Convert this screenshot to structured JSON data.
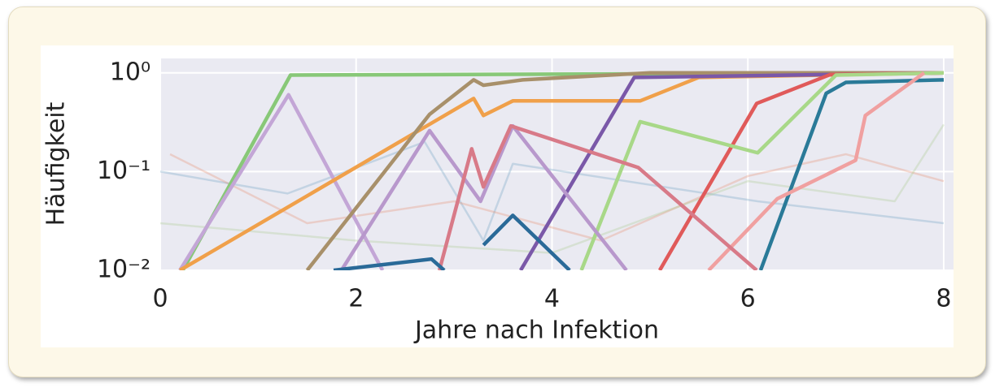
{
  "chart_data": {
    "type": "line",
    "xlabel": "Jahre nach Infektion",
    "ylabel": "Häufigkeit",
    "xlim": [
      0,
      8.1
    ],
    "xticks": [
      0,
      2,
      4,
      6,
      8
    ],
    "ylim": [
      0.01,
      1.4
    ],
    "log_y": true,
    "yticks": [
      {
        "value": 0.01,
        "label": "10⁻²"
      },
      {
        "value": 0.1,
        "label": "10⁻¹"
      },
      {
        "value": 1,
        "label": "10⁰"
      }
    ],
    "grid": true,
    "series": [
      {
        "color": "#6a9fc0",
        "opacity": 0.3,
        "x": [
          0,
          1.3,
          2.7,
          3.3,
          3.6,
          6.1,
          8
        ],
        "values": [
          0.1,
          0.06,
          0.2,
          0.02,
          0.12,
          0.05,
          0.03
        ]
      },
      {
        "color": "#e88a6b",
        "opacity": 0.3,
        "x": [
          0.1,
          1.5,
          3.0,
          4.5,
          6.0,
          7.0,
          8
        ],
        "values": [
          0.15,
          0.03,
          0.05,
          0.02,
          0.09,
          0.15,
          0.08
        ]
      },
      {
        "color": "#a9c98a",
        "opacity": 0.3,
        "x": [
          0,
          2.0,
          4.0,
          6.0,
          7.5,
          8
        ],
        "values": [
          0.03,
          0.02,
          0.015,
          0.08,
          0.05,
          0.3
        ]
      },
      {
        "color": "#88c878",
        "opacity": 1,
        "x": [
          0.23,
          1.33,
          8
        ],
        "values": [
          0.01,
          0.95,
          1
        ]
      },
      {
        "color": "#c3a6d6",
        "opacity": 1,
        "x": [
          0.2,
          1.31,
          2.27
        ],
        "values": [
          0.01,
          0.6,
          0.01
        ]
      },
      {
        "color": "#f0a04a",
        "opacity": 1,
        "x": [
          0.2,
          3.2,
          3.3,
          3.6,
          4.9,
          5.5,
          8
        ],
        "values": [
          0.01,
          0.55,
          0.37,
          0.52,
          0.52,
          0.9,
          1
        ]
      },
      {
        "color": "#a8906a",
        "opacity": 1,
        "x": [
          1.5,
          2.75,
          3.2,
          3.3,
          3.7,
          5.0,
          8
        ],
        "values": [
          0.01,
          0.38,
          0.85,
          0.75,
          0.85,
          1,
          1
        ]
      },
      {
        "color": "#7a58a8",
        "opacity": 1,
        "x": [
          3.68,
          4.84,
          8
        ],
        "values": [
          0.01,
          0.9,
          1
        ]
      },
      {
        "color": "#e05a5a",
        "opacity": 1,
        "x": [
          5.1,
          6.09,
          6.84,
          8
        ],
        "values": [
          0.01,
          0.49,
          0.96,
          1
        ]
      },
      {
        "color": "#a8d888",
        "opacity": 1,
        "x": [
          4.3,
          4.9,
          6.1,
          6.9,
          8
        ],
        "values": [
          0.01,
          0.32,
          0.155,
          0.95,
          1
        ]
      },
      {
        "color": "#2a7a98",
        "opacity": 1,
        "x": [
          6.13,
          6.8,
          7.0,
          8
        ],
        "values": [
          0.01,
          0.62,
          0.8,
          0.85
        ]
      },
      {
        "color": "#f0a0a0",
        "opacity": 1,
        "x": [
          5.6,
          6.3,
          7.1,
          7.2,
          7.8
        ],
        "values": [
          0.01,
          0.053,
          0.13,
          0.37,
          1
        ]
      },
      {
        "color": "#b898cc",
        "opacity": 1,
        "x": [
          1.85,
          2.75,
          3.27,
          3.6,
          4.76
        ],
        "values": [
          0.01,
          0.26,
          0.05,
          0.29,
          0.01
        ]
      },
      {
        "color": "#d87a88",
        "opacity": 1,
        "x": [
          2.85,
          3.18,
          3.3,
          3.58,
          4.88,
          6.09
        ],
        "values": [
          0.01,
          0.17,
          0.07,
          0.29,
          0.11,
          0.01
        ]
      },
      {
        "color": "#2a6a98",
        "opacity": 1,
        "x": [
          1.77,
          2.77,
          2.9
        ],
        "values": [
          0.01,
          0.013,
          0.01
        ]
      },
      {
        "color": "#2a6a98",
        "opacity": 1,
        "x": [
          3.3,
          3.6,
          4.18
        ],
        "values": [
          0.018,
          0.036,
          0.01
        ]
      }
    ]
  }
}
